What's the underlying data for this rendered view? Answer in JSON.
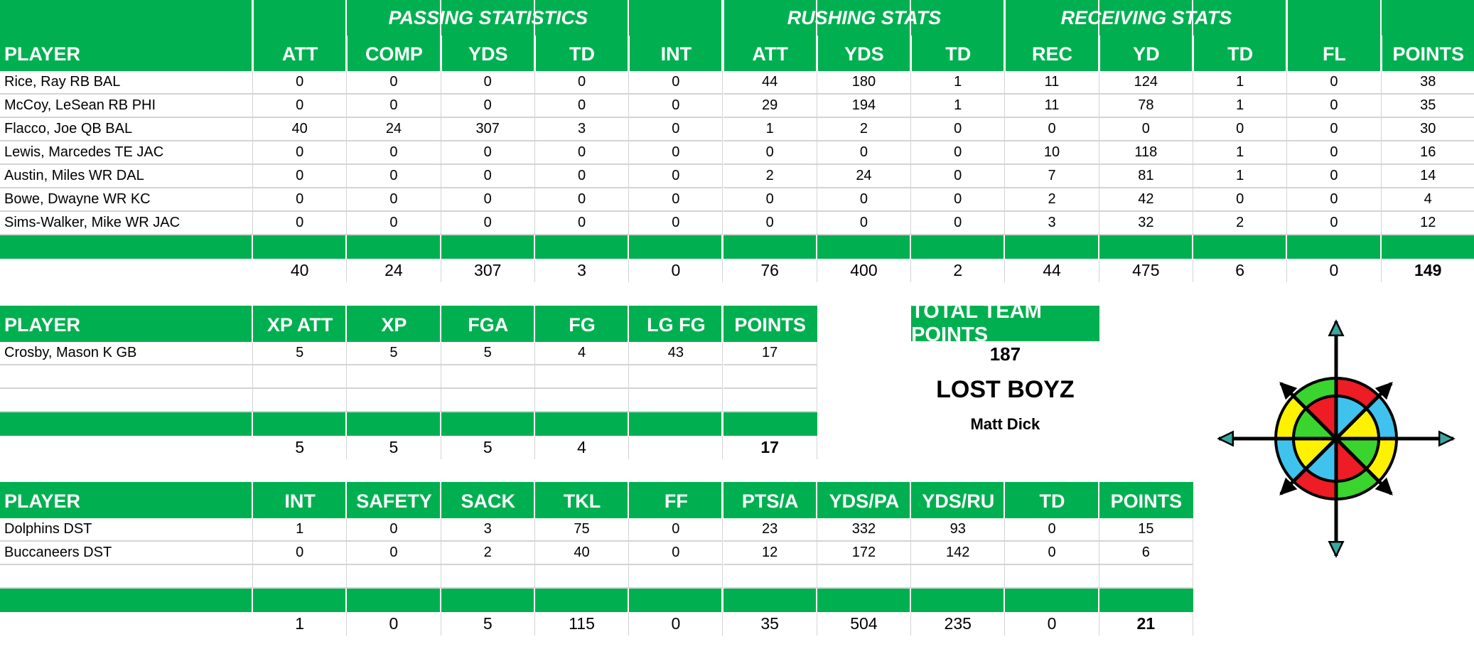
{
  "offense": {
    "groups": [
      {
        "label": "PASSING STATISTICS",
        "col_start": 1,
        "col_span": 5
      },
      {
        "label": "RUSHING STATS",
        "col_start": 6,
        "col_span": 3
      },
      {
        "label": "RECEIVING STATS",
        "col_start": 9,
        "col_span": 3
      },
      {
        "label": "",
        "col_start": 12,
        "col_span": 2
      }
    ],
    "headers": [
      "PLAYER",
      "ATT",
      "COMP",
      "YDS",
      "TD",
      "INT",
      "ATT",
      "YDS",
      "TD",
      "REC",
      "YD",
      "TD",
      "FL",
      "POINTS"
    ],
    "rows": [
      [
        "Rice, Ray RB BAL",
        "0",
        "0",
        "0",
        "0",
        "0",
        "44",
        "180",
        "1",
        "11",
        "124",
        "1",
        "0",
        "38"
      ],
      [
        "McCoy, LeSean RB PHI",
        "0",
        "0",
        "0",
        "0",
        "0",
        "29",
        "194",
        "1",
        "11",
        "78",
        "1",
        "0",
        "35"
      ],
      [
        "Flacco, Joe QB BAL",
        "40",
        "24",
        "307",
        "3",
        "0",
        "1",
        "2",
        "0",
        "0",
        "0",
        "0",
        "0",
        "30"
      ],
      [
        "Lewis, Marcedes TE JAC",
        "0",
        "0",
        "0",
        "0",
        "0",
        "0",
        "0",
        "0",
        "10",
        "118",
        "1",
        "0",
        "16"
      ],
      [
        "Austin, Miles WR DAL",
        "0",
        "0",
        "0",
        "0",
        "0",
        "2",
        "24",
        "0",
        "7",
        "81",
        "1",
        "0",
        "14"
      ],
      [
        "Bowe, Dwayne WR KC",
        "0",
        "0",
        "0",
        "0",
        "0",
        "0",
        "0",
        "0",
        "2",
        "42",
        "0",
        "0",
        "4"
      ],
      [
        "Sims-Walker, Mike WR JAC",
        "0",
        "0",
        "0",
        "0",
        "0",
        "0",
        "0",
        "0",
        "3",
        "32",
        "2",
        "0",
        "12"
      ]
    ],
    "totals": [
      "",
      "40",
      "24",
      "307",
      "3",
      "0",
      "76",
      "400",
      "2",
      "44",
      "475",
      "6",
      "0",
      "149"
    ]
  },
  "kicker": {
    "headers": [
      "PLAYER",
      "XP ATT",
      "XP",
      "FGA",
      "FG",
      "LG FG",
      "POINTS"
    ],
    "rows": [
      [
        "Crosby, Mason K GB",
        "5",
        "5",
        "5",
        "4",
        "43",
        "17"
      ],
      [
        "",
        "",
        "",
        "",
        "",
        "",
        ""
      ],
      [
        "",
        "",
        "",
        "",
        "",
        "",
        ""
      ]
    ],
    "totals": [
      "",
      "5",
      "5",
      "5",
      "4",
      "",
      "17"
    ]
  },
  "defense": {
    "headers": [
      "PLAYER",
      "INT",
      "SAFETY",
      "SACK",
      "TKL",
      "FF",
      "PTS/A",
      "YDS/PA",
      "YDS/RU",
      "TD",
      "POINTS"
    ],
    "rows": [
      [
        "Dolphins DST",
        "1",
        "0",
        "3",
        "75",
        "0",
        "23",
        "332",
        "93",
        "0",
        "15"
      ],
      [
        "Buccaneers DST",
        "0",
        "0",
        "2",
        "40",
        "0",
        "12",
        "172",
        "142",
        "0",
        "6"
      ],
      [
        "",
        "",
        "",
        "",
        "",
        "",
        "",
        "",
        "",
        "",
        ""
      ]
    ],
    "totals": [
      "",
      "1",
      "0",
      "5",
      "115",
      "0",
      "35",
      "504",
      "235",
      "0",
      "21"
    ]
  },
  "team": {
    "total_label": "TOTAL TEAM POINTS",
    "total_points": "187",
    "team_name": "LOST BOYZ",
    "owner": "Matt Dick",
    "logo_icon": "compass-rose-icon"
  },
  "colors": {
    "header_green": "#00b050",
    "grid_gray": "#d4d4d4",
    "compass_red": "#ee1c24",
    "compass_blue": "#3fc3ee",
    "compass_yellow": "#fff200",
    "compass_green": "#3ad42f",
    "compass_arrow_tip": "#3aa8a0"
  }
}
